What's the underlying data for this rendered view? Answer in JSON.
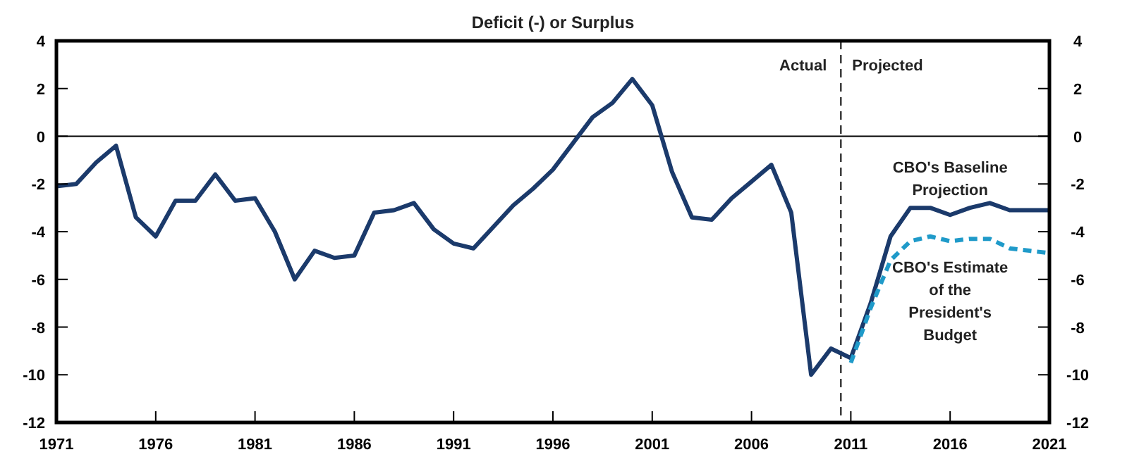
{
  "chart_data": {
    "type": "line",
    "title": "Deficit (-) or Surplus",
    "xlim": [
      1971,
      2021
    ],
    "xticks": [
      1971,
      1976,
      1981,
      1986,
      1991,
      1996,
      2001,
      2006,
      2011,
      2016,
      2021
    ],
    "ylim": [
      -12,
      4
    ],
    "yticks": [
      -12,
      -10,
      -8,
      -6,
      -4,
      -2,
      0,
      2,
      4
    ],
    "y2lim": [
      -12,
      4
    ],
    "y2ticks": [
      -12,
      -10,
      -8,
      -6,
      -4,
      -2,
      0,
      2,
      4
    ],
    "grid": false,
    "series": [
      {
        "name": "CBO's Baseline Projection",
        "color": "#1b3a6b",
        "line_style": "solid",
        "x": [
          1971,
          1972,
          1973,
          1974,
          1975,
          1976,
          1977,
          1978,
          1979,
          1980,
          1981,
          1982,
          1983,
          1984,
          1985,
          1986,
          1987,
          1988,
          1989,
          1990,
          1991,
          1992,
          1993,
          1994,
          1995,
          1996,
          1997,
          1998,
          1999,
          2000,
          2001,
          2002,
          2003,
          2004,
          2005,
          2006,
          2007,
          2008,
          2009,
          2010,
          2011,
          2012,
          2013,
          2014,
          2015,
          2016,
          2017,
          2018,
          2019,
          2020,
          2021
        ],
        "values": [
          -2.1,
          -2.0,
          -1.1,
          -0.4,
          -3.4,
          -4.2,
          -2.7,
          -2.7,
          -1.6,
          -2.7,
          -2.6,
          -4.0,
          -6.0,
          -4.8,
          -5.1,
          -5.0,
          -3.2,
          -3.1,
          -2.8,
          -3.9,
          -4.5,
          -4.7,
          -3.8,
          -2.9,
          -2.2,
          -1.4,
          -0.3,
          0.8,
          1.4,
          2.4,
          1.3,
          -1.5,
          -3.4,
          -3.5,
          -2.6,
          -1.9,
          -1.2,
          -3.2,
          -10.0,
          -8.9,
          -9.3,
          -7.0,
          -4.2,
          -3.0,
          -3.0,
          -3.3,
          -3.0,
          -2.8,
          -3.1,
          -3.1,
          -3.1
        ]
      },
      {
        "name": "CBO's Estimate of the President's Budget",
        "color": "#1f9ac9",
        "line_style": "dashed",
        "x": [
          2011,
          2012,
          2013,
          2014,
          2015,
          2016,
          2017,
          2018,
          2019,
          2020,
          2021
        ],
        "values": [
          -9.5,
          -7.2,
          -5.2,
          -4.4,
          -4.2,
          -4.4,
          -4.3,
          -4.3,
          -4.7,
          -4.8,
          -4.9
        ]
      }
    ],
    "ref_lines": [
      {
        "axis": "y",
        "value": 0,
        "label": null,
        "color": "#000000",
        "line_style": "solid"
      },
      {
        "axis": "x",
        "value": 2010.5,
        "label": null,
        "color": "#000000",
        "line_style": "dashed"
      }
    ],
    "annotations": [
      "Actual",
      "Projected"
    ]
  }
}
